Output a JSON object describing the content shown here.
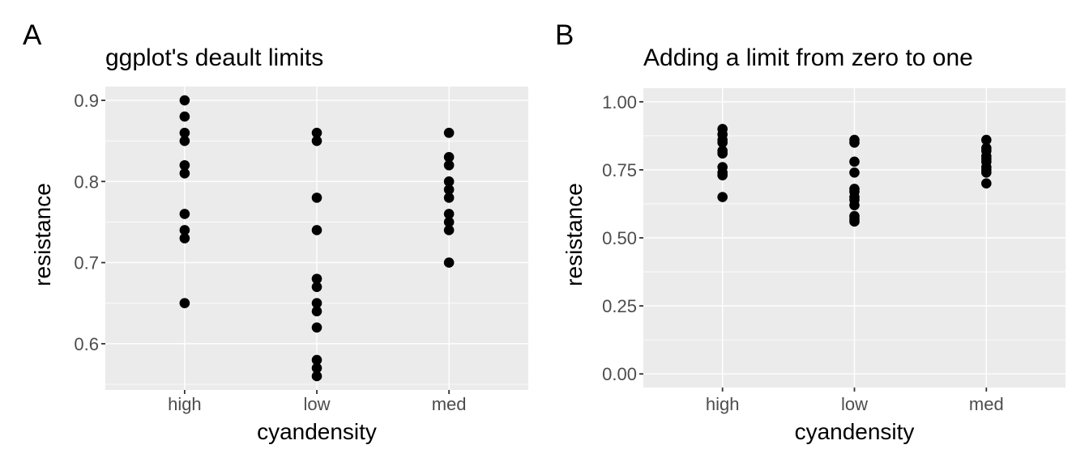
{
  "colors": {
    "figure_background": "#FFFFFF",
    "panel_background": "#EBEBEB",
    "gridline": "#FFFFFF",
    "point": "#000000",
    "axis_tick_label": "#4D4D4D",
    "axis_tick_mark": "#333333",
    "axis_title": "#000000",
    "title_text": "#000000"
  },
  "chart_data": [
    {
      "type": "scatter",
      "tag": "A",
      "title": "ggplot's deault limits",
      "xlabel": "cyandensity",
      "ylabel": "resistance",
      "categories": [
        "high",
        "low",
        "med"
      ],
      "series": [
        {
          "name": "high",
          "values": [
            0.9,
            0.88,
            0.86,
            0.85,
            0.82,
            0.81,
            0.76,
            0.74,
            0.73,
            0.65
          ]
        },
        {
          "name": "low",
          "values": [
            0.86,
            0.85,
            0.78,
            0.74,
            0.68,
            0.67,
            0.65,
            0.64,
            0.62,
            0.58,
            0.57,
            0.56
          ]
        },
        {
          "name": "med",
          "values": [
            0.86,
            0.83,
            0.82,
            0.8,
            0.79,
            0.78,
            0.76,
            0.75,
            0.74,
            0.7
          ]
        }
      ],
      "y_ticks": [
        0.6,
        0.7,
        0.8,
        0.9
      ],
      "y_tick_labels": [
        "0.6",
        "0.7",
        "0.8",
        "0.9"
      ],
      "y_minor_ticks": [
        0.55,
        0.65,
        0.75,
        0.85
      ],
      "ylim": [
        0.543,
        0.917
      ],
      "grid": true,
      "legend": "none"
    },
    {
      "type": "scatter",
      "tag": "B",
      "title": "Adding a limit from zero to one",
      "xlabel": "cyandensity",
      "ylabel": "resistance",
      "categories": [
        "high",
        "low",
        "med"
      ],
      "series": [
        {
          "name": "high",
          "values": [
            0.9,
            0.88,
            0.86,
            0.85,
            0.82,
            0.81,
            0.76,
            0.74,
            0.73,
            0.65
          ]
        },
        {
          "name": "low",
          "values": [
            0.86,
            0.85,
            0.78,
            0.74,
            0.68,
            0.67,
            0.65,
            0.64,
            0.62,
            0.58,
            0.57,
            0.56
          ]
        },
        {
          "name": "med",
          "values": [
            0.86,
            0.83,
            0.82,
            0.8,
            0.79,
            0.78,
            0.76,
            0.75,
            0.74,
            0.7
          ]
        }
      ],
      "y_ticks": [
        0.0,
        0.25,
        0.5,
        0.75,
        1.0
      ],
      "y_tick_labels": [
        "0.00",
        "0.25",
        "0.50",
        "0.75",
        "1.00"
      ],
      "y_minor_ticks": [
        0.125,
        0.375,
        0.625,
        0.875
      ],
      "ylim": [
        -0.05,
        1.05
      ],
      "grid": true,
      "legend": "none"
    }
  ]
}
